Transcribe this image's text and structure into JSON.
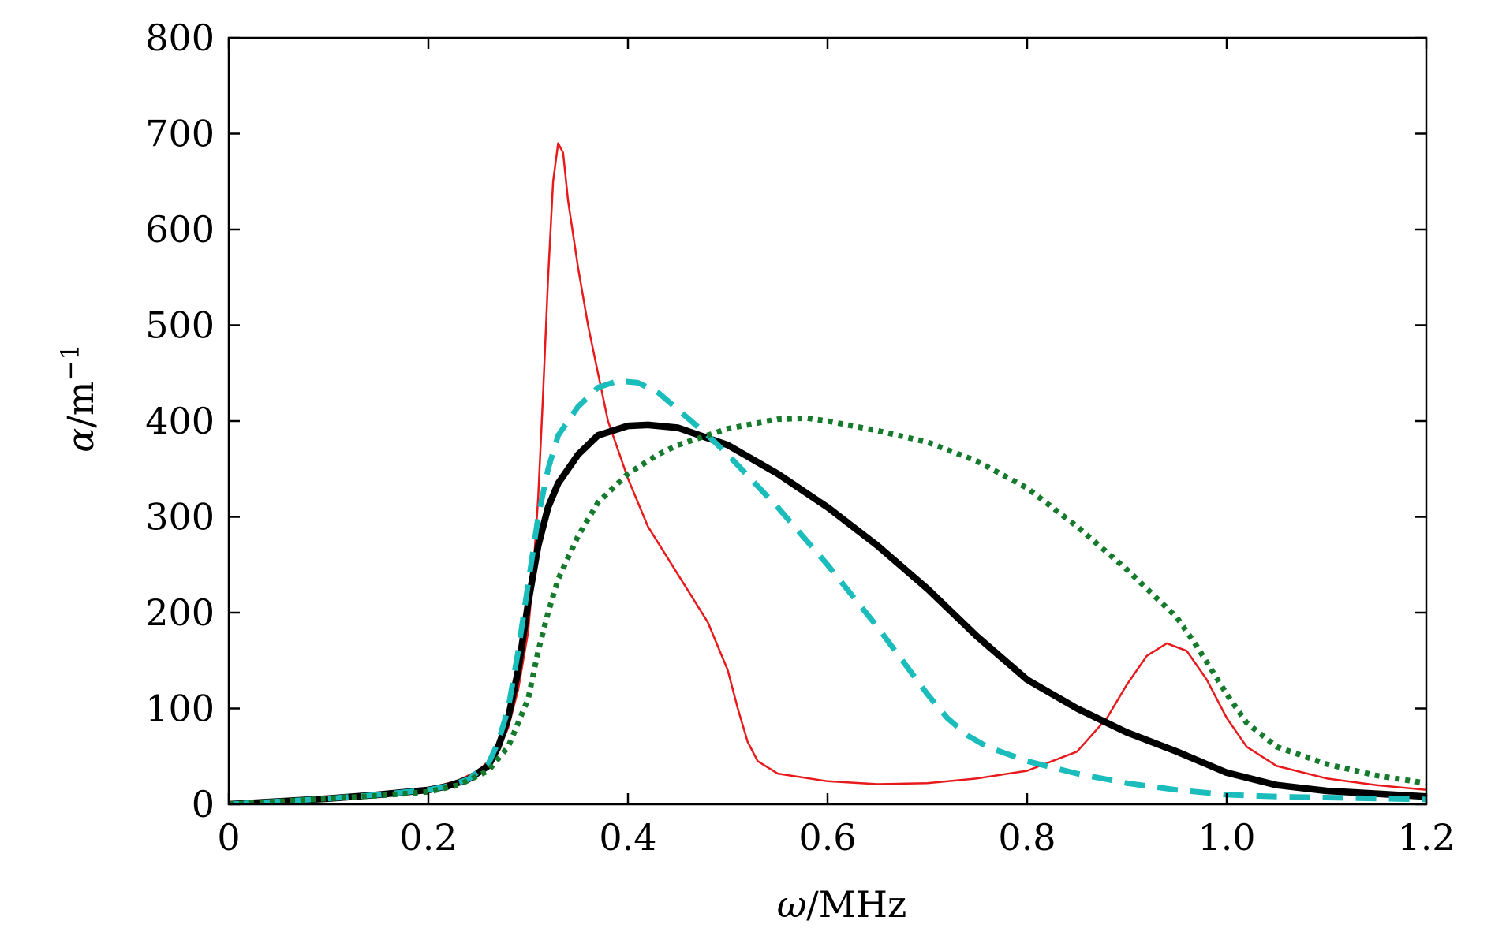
{
  "chart_data": {
    "type": "line",
    "title": "",
    "xlabel": {
      "symbol": "ω",
      "unit": "/MHz"
    },
    "ylabel": {
      "symbol": "α",
      "unit": "/m",
      "exponent": "−1"
    },
    "xlim": [
      0,
      1.2
    ],
    "ylim": [
      0,
      800
    ],
    "x_ticks": [
      0,
      0.2,
      0.4,
      0.6,
      0.8,
      1.0,
      1.2
    ],
    "x_tick_labels": [
      "0",
      "0.2",
      "0.4",
      "0.6",
      "0.8",
      "1.0",
      "1.2"
    ],
    "y_ticks": [
      0,
      100,
      200,
      300,
      400,
      500,
      600,
      700,
      800
    ],
    "y_tick_labels": [
      "0",
      "100",
      "200",
      "300",
      "400",
      "500",
      "600",
      "700",
      "800"
    ],
    "grid": false,
    "legend": "none",
    "series": [
      {
        "name": "red-thin-solid",
        "color": "#e8191b",
        "style": "solid",
        "width": 2.5,
        "points": [
          [
            0,
            0
          ],
          [
            0.05,
            3
          ],
          [
            0.1,
            6
          ],
          [
            0.15,
            10
          ],
          [
            0.2,
            16
          ],
          [
            0.23,
            25
          ],
          [
            0.25,
            35
          ],
          [
            0.27,
            55
          ],
          [
            0.28,
            80
          ],
          [
            0.29,
            120
          ],
          [
            0.3,
            180
          ],
          [
            0.305,
            240
          ],
          [
            0.31,
            320
          ],
          [
            0.315,
            430
          ],
          [
            0.32,
            550
          ],
          [
            0.325,
            650
          ],
          [
            0.33,
            690
          ],
          [
            0.335,
            680
          ],
          [
            0.34,
            630
          ],
          [
            0.35,
            560
          ],
          [
            0.36,
            500
          ],
          [
            0.37,
            450
          ],
          [
            0.38,
            400
          ],
          [
            0.4,
            340
          ],
          [
            0.42,
            290
          ],
          [
            0.45,
            240
          ],
          [
            0.48,
            190
          ],
          [
            0.5,
            140
          ],
          [
            0.51,
            100
          ],
          [
            0.52,
            65
          ],
          [
            0.53,
            45
          ],
          [
            0.55,
            32
          ],
          [
            0.6,
            24
          ],
          [
            0.65,
            21
          ],
          [
            0.7,
            22
          ],
          [
            0.75,
            27
          ],
          [
            0.8,
            35
          ],
          [
            0.85,
            55
          ],
          [
            0.88,
            90
          ],
          [
            0.9,
            125
          ],
          [
            0.92,
            155
          ],
          [
            0.94,
            168
          ],
          [
            0.96,
            160
          ],
          [
            0.98,
            130
          ],
          [
            1.0,
            90
          ],
          [
            1.02,
            60
          ],
          [
            1.05,
            40
          ],
          [
            1.1,
            27
          ],
          [
            1.15,
            20
          ],
          [
            1.2,
            15
          ]
        ]
      },
      {
        "name": "black-thick-solid",
        "color": "#000000",
        "style": "solid",
        "width": 8.5,
        "points": [
          [
            0,
            0
          ],
          [
            0.05,
            3
          ],
          [
            0.1,
            6
          ],
          [
            0.15,
            10
          ],
          [
            0.2,
            15
          ],
          [
            0.22,
            19
          ],
          [
            0.24,
            26
          ],
          [
            0.26,
            40
          ],
          [
            0.27,
            60
          ],
          [
            0.28,
            90
          ],
          [
            0.29,
            140
          ],
          [
            0.3,
            210
          ],
          [
            0.31,
            270
          ],
          [
            0.32,
            310
          ],
          [
            0.33,
            335
          ],
          [
            0.35,
            365
          ],
          [
            0.37,
            385
          ],
          [
            0.4,
            395
          ],
          [
            0.42,
            396
          ],
          [
            0.45,
            393
          ],
          [
            0.5,
            375
          ],
          [
            0.55,
            345
          ],
          [
            0.6,
            310
          ],
          [
            0.65,
            270
          ],
          [
            0.7,
            225
          ],
          [
            0.75,
            175
          ],
          [
            0.8,
            130
          ],
          [
            0.85,
            100
          ],
          [
            0.9,
            75
          ],
          [
            0.95,
            55
          ],
          [
            1.0,
            33
          ],
          [
            1.05,
            20
          ],
          [
            1.1,
            14
          ],
          [
            1.15,
            11
          ],
          [
            1.2,
            8
          ]
        ]
      },
      {
        "name": "cyan-dashed",
        "color": "#1bbcbc",
        "style": "dashed",
        "width": 7,
        "points": [
          [
            0,
            0
          ],
          [
            0.05,
            3
          ],
          [
            0.1,
            6
          ],
          [
            0.15,
            10
          ],
          [
            0.2,
            15
          ],
          [
            0.22,
            19
          ],
          [
            0.24,
            26
          ],
          [
            0.26,
            42
          ],
          [
            0.27,
            65
          ],
          [
            0.28,
            100
          ],
          [
            0.29,
            160
          ],
          [
            0.3,
            230
          ],
          [
            0.31,
            300
          ],
          [
            0.32,
            350
          ],
          [
            0.33,
            385
          ],
          [
            0.35,
            415
          ],
          [
            0.37,
            435
          ],
          [
            0.39,
            442
          ],
          [
            0.41,
            440
          ],
          [
            0.43,
            430
          ],
          [
            0.45,
            412
          ],
          [
            0.48,
            385
          ],
          [
            0.5,
            365
          ],
          [
            0.55,
            310
          ],
          [
            0.6,
            250
          ],
          [
            0.65,
            185
          ],
          [
            0.7,
            115
          ],
          [
            0.72,
            90
          ],
          [
            0.74,
            72
          ],
          [
            0.76,
            60
          ],
          [
            0.8,
            45
          ],
          [
            0.85,
            32
          ],
          [
            0.9,
            22
          ],
          [
            0.95,
            15
          ],
          [
            1.0,
            10
          ],
          [
            1.05,
            8
          ],
          [
            1.1,
            7
          ],
          [
            1.2,
            5
          ]
        ]
      },
      {
        "name": "green-dotted",
        "color": "#157a2c",
        "style": "dotted",
        "width": 7,
        "points": [
          [
            0,
            0
          ],
          [
            0.05,
            3
          ],
          [
            0.1,
            6
          ],
          [
            0.15,
            9
          ],
          [
            0.2,
            13
          ],
          [
            0.23,
            20
          ],
          [
            0.26,
            35
          ],
          [
            0.28,
            60
          ],
          [
            0.3,
            110
          ],
          [
            0.31,
            160
          ],
          [
            0.32,
            200
          ],
          [
            0.33,
            235
          ],
          [
            0.35,
            280
          ],
          [
            0.37,
            315
          ],
          [
            0.4,
            345
          ],
          [
            0.43,
            365
          ],
          [
            0.45,
            375
          ],
          [
            0.5,
            392
          ],
          [
            0.55,
            402
          ],
          [
            0.58,
            403
          ],
          [
            0.6,
            400
          ],
          [
            0.65,
            390
          ],
          [
            0.7,
            378
          ],
          [
            0.75,
            358
          ],
          [
            0.8,
            330
          ],
          [
            0.85,
            290
          ],
          [
            0.9,
            245
          ],
          [
            0.95,
            195
          ],
          [
            0.97,
            165
          ],
          [
            1.0,
            115
          ],
          [
            1.02,
            85
          ],
          [
            1.05,
            60
          ],
          [
            1.1,
            42
          ],
          [
            1.15,
            30
          ],
          [
            1.2,
            22
          ]
        ]
      }
    ]
  }
}
